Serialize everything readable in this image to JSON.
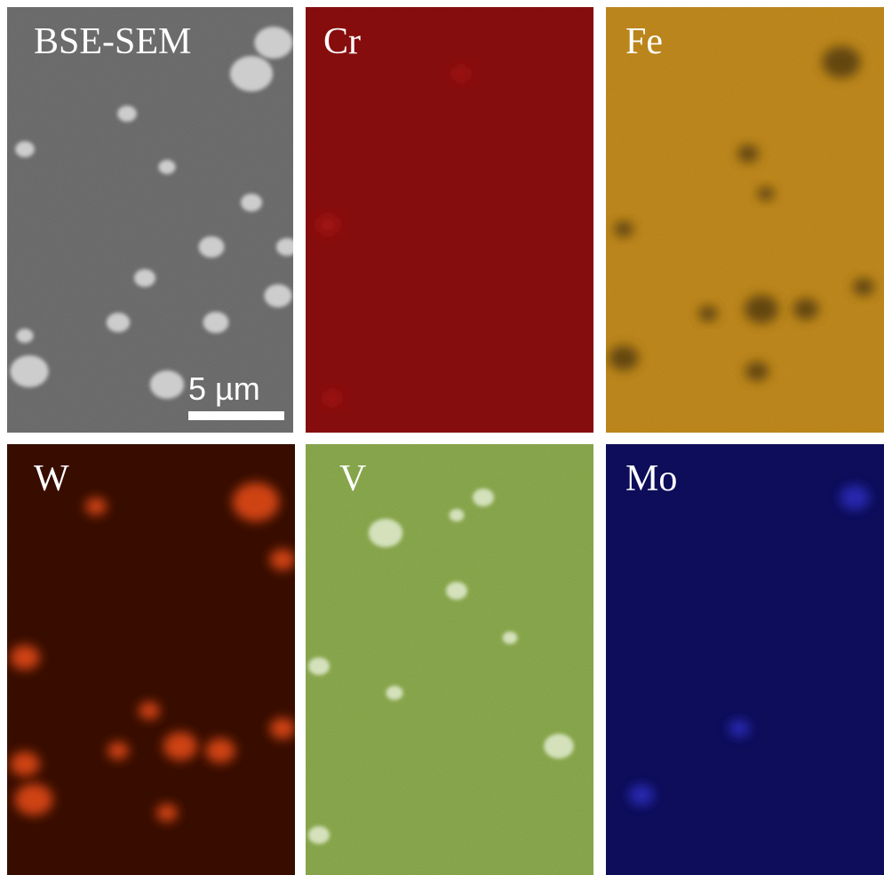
{
  "panels": [
    {
      "label": "BSE-SEM"
    },
    {
      "label": "Cr"
    },
    {
      "label": "Fe"
    },
    {
      "label": "W"
    },
    {
      "label": "V"
    },
    {
      "label": "Mo"
    }
  ],
  "scale_bar": {
    "label": "5 µm"
  }
}
